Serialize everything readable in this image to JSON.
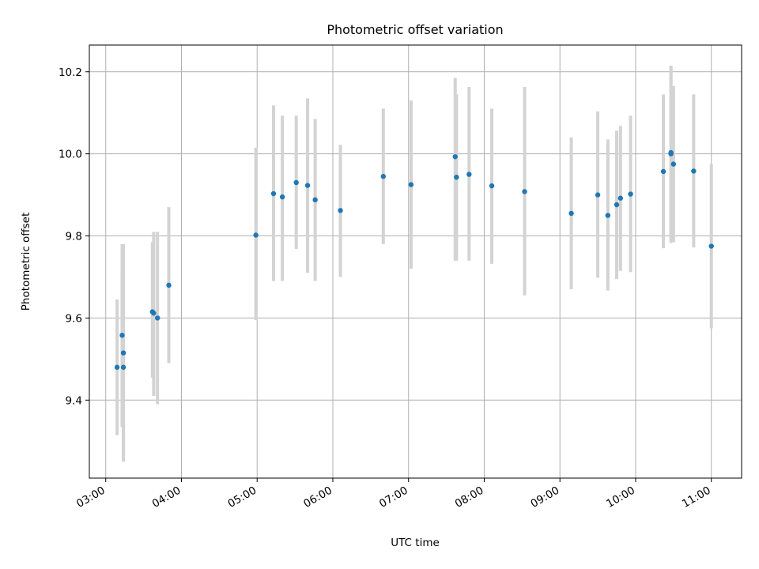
{
  "chart_data": {
    "type": "scatter",
    "title": "Photometric offset variation",
    "xlabel": "UTC time",
    "ylabel": "Photometric offset",
    "grid": true,
    "x_ticks": [
      "03:00",
      "04:00",
      "05:00",
      "06:00",
      "07:00",
      "08:00",
      "09:00",
      "10:00",
      "11:00"
    ],
    "y_ticks": [
      "9.4",
      "9.6",
      "9.8",
      "10.0",
      "10.2"
    ],
    "xlim": [
      "02:47",
      "11:24"
    ],
    "ylim": [
      9.21,
      10.265
    ],
    "colors": {
      "point": "#1f77b4",
      "errorbar": "#d3d3d3",
      "grid": "#b0b0b0"
    },
    "points": [
      {
        "x": "03:09",
        "y": 9.48,
        "lo": 9.315,
        "hi": 9.645
      },
      {
        "x": "03:13",
        "y": 9.558,
        "lo": 9.335,
        "hi": 9.78
      },
      {
        "x": "03:14",
        "y": 9.515,
        "lo": 9.25,
        "hi": 9.78
      },
      {
        "x": "03:14",
        "y": 9.48,
        "lo": 9.26,
        "hi": 9.7
      },
      {
        "x": "03:37",
        "y": 9.615,
        "lo": 9.455,
        "hi": 9.785
      },
      {
        "x": "03:38",
        "y": 9.612,
        "lo": 9.41,
        "hi": 9.81
      },
      {
        "x": "03:41",
        "y": 9.6,
        "lo": 9.39,
        "hi": 9.81
      },
      {
        "x": "03:50",
        "y": 9.68,
        "lo": 9.49,
        "hi": 9.87
      },
      {
        "x": "04:59",
        "y": 9.802,
        "lo": 9.595,
        "hi": 10.015
      },
      {
        "x": "05:13",
        "y": 9.903,
        "lo": 9.69,
        "hi": 10.118
      },
      {
        "x": "05:20",
        "y": 9.895,
        "lo": 9.69,
        "hi": 10.093
      },
      {
        "x": "05:31",
        "y": 9.93,
        "lo": 9.768,
        "hi": 10.093
      },
      {
        "x": "05:40",
        "y": 9.923,
        "lo": 9.71,
        "hi": 10.135
      },
      {
        "x": "05:46",
        "y": 9.888,
        "lo": 9.69,
        "hi": 10.085
      },
      {
        "x": "06:06",
        "y": 9.862,
        "lo": 9.7,
        "hi": 10.022
      },
      {
        "x": "06:40",
        "y": 9.945,
        "lo": 9.78,
        "hi": 10.11
      },
      {
        "x": "07:02",
        "y": 9.925,
        "lo": 9.72,
        "hi": 10.13
      },
      {
        "x": "07:37",
        "y": 9.993,
        "lo": 9.74,
        "hi": 10.185
      },
      {
        "x": "07:38",
        "y": 9.943,
        "lo": 9.74,
        "hi": 10.145
      },
      {
        "x": "07:48",
        "y": 9.95,
        "lo": 9.74,
        "hi": 10.163
      },
      {
        "x": "08:06",
        "y": 9.922,
        "lo": 9.732,
        "hi": 10.11
      },
      {
        "x": "08:32",
        "y": 9.908,
        "lo": 9.655,
        "hi": 10.163
      },
      {
        "x": "09:09",
        "y": 9.855,
        "lo": 9.67,
        "hi": 10.04
      },
      {
        "x": "09:30",
        "y": 9.9,
        "lo": 9.698,
        "hi": 10.103
      },
      {
        "x": "09:38",
        "y": 9.85,
        "lo": 9.667,
        "hi": 10.035
      },
      {
        "x": "09:45",
        "y": 9.876,
        "lo": 9.695,
        "hi": 10.056
      },
      {
        "x": "09:48",
        "y": 9.892,
        "lo": 9.715,
        "hi": 10.068
      },
      {
        "x": "09:56",
        "y": 9.902,
        "lo": 9.712,
        "hi": 10.093
      },
      {
        "x": "10:22",
        "y": 9.957,
        "lo": 9.77,
        "hi": 10.145
      },
      {
        "x": "10:28",
        "y": 10.0,
        "lo": 9.783,
        "hi": 10.215
      },
      {
        "x": "10:28",
        "y": 10.003,
        "lo": 9.79,
        "hi": 10.21
      },
      {
        "x": "10:30",
        "y": 9.975,
        "lo": 9.785,
        "hi": 10.165
      },
      {
        "x": "10:46",
        "y": 9.958,
        "lo": 9.772,
        "hi": 10.145
      },
      {
        "x": "11:00",
        "y": 9.775,
        "lo": 9.575,
        "hi": 9.975
      }
    ]
  }
}
